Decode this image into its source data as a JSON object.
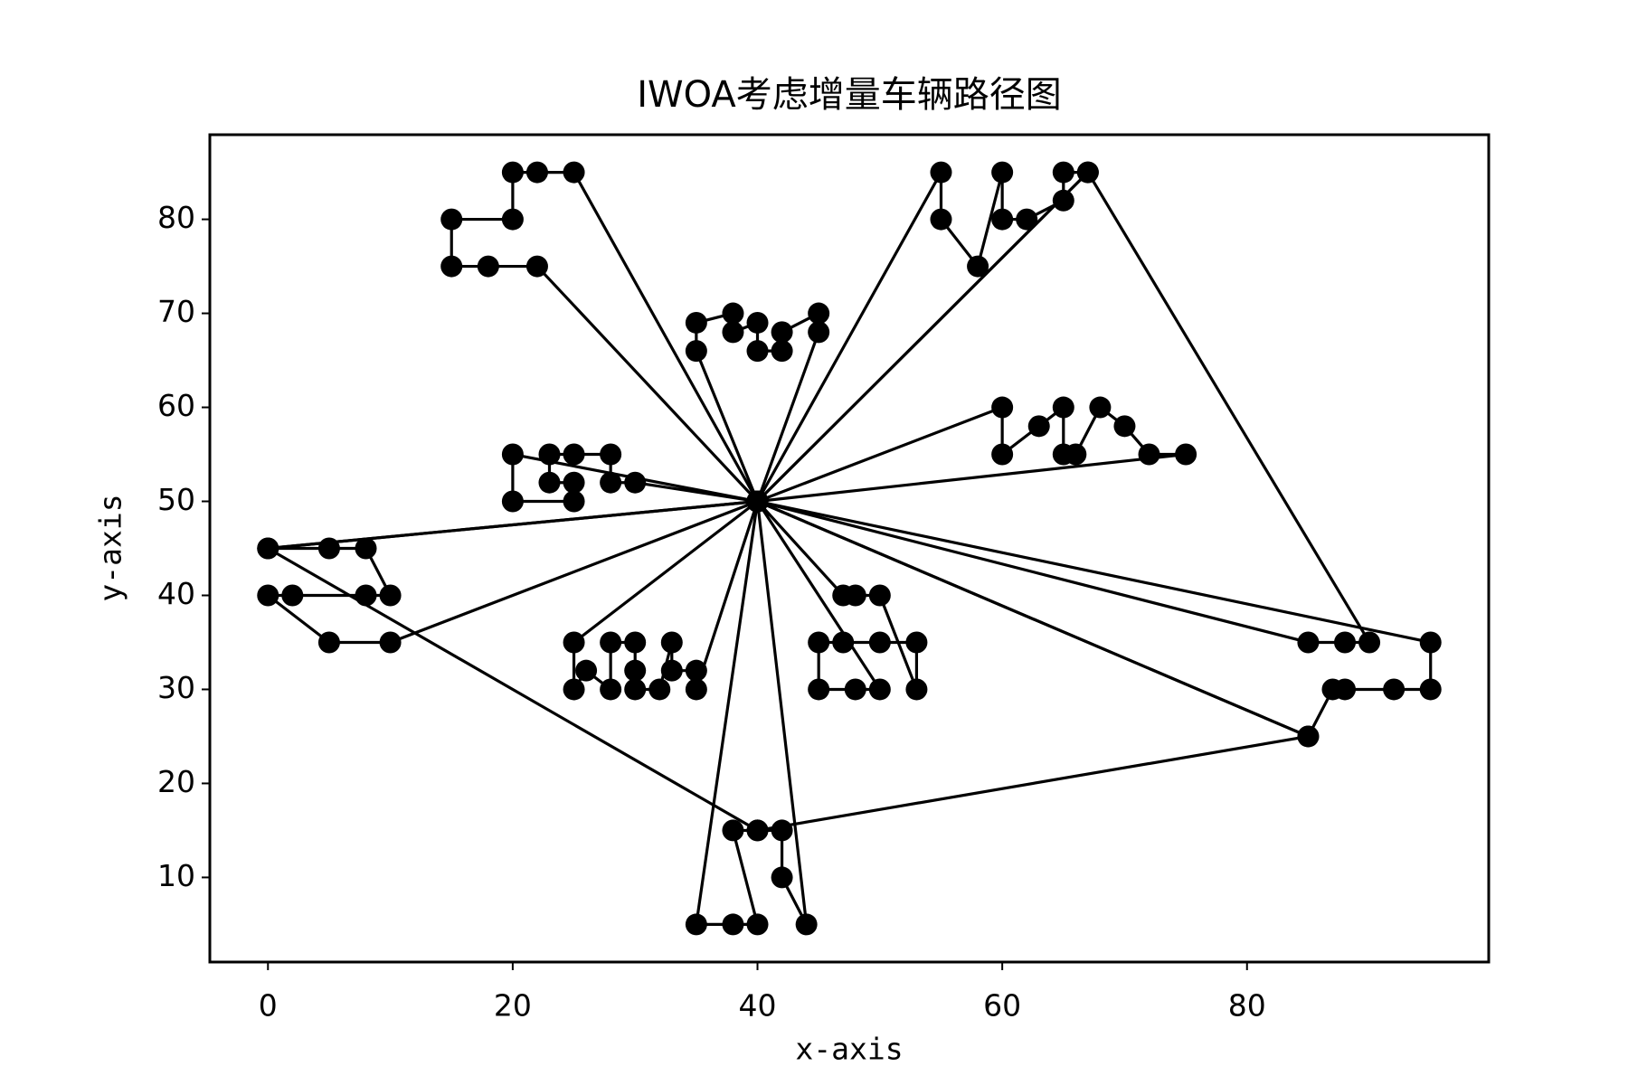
{
  "chart_data": {
    "type": "line",
    "title": "IWOA考虑增量车辆路径图",
    "x_label": "x-axis",
    "y_label": "y-axis",
    "color": "#000000",
    "xlim": [
      -4.75,
      99.75
    ],
    "ylim": [
      1,
      89
    ],
    "xticks": [
      0,
      20,
      40,
      60,
      80
    ],
    "yticks": [
      10,
      20,
      30,
      40,
      50,
      60,
      70,
      80
    ],
    "series": [
      {
        "x": [
          40,
          45,
          45,
          42,
          42,
          40,
          40,
          38,
          38,
          35,
          35,
          40
        ],
        "values": [
          50,
          68,
          70,
          68,
          66,
          66,
          69,
          68,
          70,
          69,
          66,
          50
        ]
      },
      {
        "x": [
          40,
          25,
          22,
          20,
          20,
          15,
          15,
          18,
          22,
          40
        ],
        "values": [
          50,
          85,
          85,
          85,
          80,
          80,
          75,
          75,
          75,
          50
        ]
      },
      {
        "x": [
          40,
          30,
          28,
          28,
          25,
          23,
          23,
          25,
          25,
          20,
          20,
          40
        ],
        "values": [
          50,
          52,
          52,
          55,
          55,
          55,
          52,
          52,
          50,
          50,
          55,
          50
        ]
      },
      {
        "x": [
          40,
          0,
          5,
          8,
          10,
          8,
          2,
          0,
          5,
          10,
          40
        ],
        "values": [
          50,
          45,
          45,
          45,
          40,
          40,
          40,
          40,
          35,
          35,
          50
        ]
      },
      {
        "x": [
          40,
          35,
          35,
          33,
          33,
          32,
          30,
          30,
          30,
          28,
          28,
          26,
          25,
          25,
          40
        ],
        "values": [
          50,
          30,
          32,
          32,
          35,
          30,
          30,
          32,
          35,
          35,
          30,
          32,
          30,
          35,
          50
        ]
      },
      {
        "x": [
          40,
          44,
          42,
          42,
          40,
          38,
          40,
          38,
          35,
          40
        ],
        "values": [
          50,
          5,
          10,
          15,
          15,
          15,
          5,
          5,
          5,
          50
        ]
      },
      {
        "x": [
          40,
          95,
          95,
          92,
          88,
          87,
          85,
          40
        ],
        "values": [
          50,
          35,
          30,
          30,
          30,
          30,
          25,
          50
        ]
      },
      {
        "x": [
          40,
          75,
          72,
          70,
          68,
          66,
          65,
          65,
          63,
          60,
          60,
          40
        ],
        "values": [
          50,
          55,
          55,
          58,
          60,
          55,
          55,
          60,
          58,
          55,
          60,
          50
        ]
      },
      {
        "x": [
          40,
          67,
          65,
          65,
          62,
          60,
          60,
          58,
          55,
          55,
          40
        ],
        "values": [
          50,
          85,
          85,
          82,
          80,
          80,
          85,
          75,
          80,
          85,
          50
        ]
      },
      {
        "x": [
          40,
          50,
          48,
          45,
          45,
          47,
          50,
          53,
          53,
          50,
          48,
          47,
          40
        ],
        "values": [
          50,
          30,
          30,
          30,
          35,
          35,
          35,
          35,
          30,
          40,
          40,
          40,
          50
        ]
      },
      {
        "x": [
          40,
          85,
          88,
          90,
          67,
          40
        ],
        "values": [
          50,
          35,
          35,
          35,
          85,
          50
        ]
      },
      {
        "x": [
          40,
          0,
          40,
          85,
          40
        ],
        "values": [
          50,
          45,
          15,
          25,
          50
        ]
      }
    ]
  }
}
